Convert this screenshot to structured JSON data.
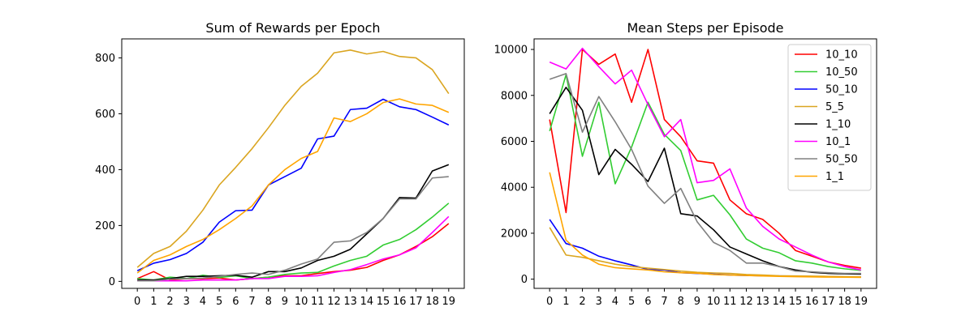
{
  "chart_data": [
    {
      "type": "line",
      "title": "Sum of Rewards per Epoch",
      "xlabel": "",
      "ylabel": "",
      "x": [
        0,
        1,
        2,
        3,
        4,
        5,
        6,
        7,
        8,
        9,
        10,
        11,
        12,
        13,
        14,
        15,
        16,
        17,
        18,
        19
      ],
      "xticks": [
        "0",
        "1",
        "2",
        "3",
        "4",
        "5",
        "6",
        "7",
        "8",
        "9",
        "10",
        "11",
        "12",
        "13",
        "14",
        "15",
        "16",
        "17",
        "18",
        "19"
      ],
      "xlim": [
        -0.95,
        19.95
      ],
      "ylim": [
        -25,
        868
      ],
      "yticks": [
        0,
        200,
        400,
        600,
        800
      ],
      "ytick_labels": [
        "0",
        "200",
        "400",
        "600",
        "800"
      ],
      "grid": false,
      "legend": null,
      "series": [
        {
          "name": "10_10",
          "color": "#ff0000",
          "values": [
            10,
            35,
            5,
            10,
            10,
            12,
            5,
            10,
            15,
            20,
            20,
            28,
            35,
            40,
            50,
            75,
            95,
            125,
            160,
            207
          ]
        },
        {
          "name": "10_50",
          "color": "#32cd32",
          "values": [
            10,
            5,
            15,
            10,
            22,
            14,
            20,
            10,
            15,
            25,
            30,
            32,
            55,
            75,
            90,
            130,
            150,
            185,
            230,
            280
          ]
        },
        {
          "name": "50_10",
          "color": "#0000ff",
          "values": [
            38,
            65,
            78,
            100,
            140,
            212,
            253,
            255,
            345,
            375,
            405,
            510,
            520,
            615,
            620,
            652,
            625,
            615,
            588,
            560
          ]
        },
        {
          "name": "5_5",
          "color": "#daa520",
          "values": [
            50,
            100,
            125,
            180,
            255,
            345,
            408,
            475,
            550,
            630,
            698,
            745,
            818,
            828,
            814,
            823,
            805,
            800,
            758,
            672
          ]
        },
        {
          "name": "1_10",
          "color": "#000000",
          "values": [
            5,
            5,
            10,
            18,
            18,
            20,
            22,
            15,
            35,
            35,
            48,
            75,
            90,
            115,
            170,
            225,
            300,
            298,
            395,
            418
          ]
        },
        {
          "name": "10_1",
          "color": "#ff00ff",
          "values": [
            2,
            2,
            2,
            2,
            5,
            5,
            5,
            10,
            10,
            18,
            18,
            20,
            32,
            42,
            60,
            80,
            95,
            120,
            175,
            232
          ]
        },
        {
          "name": "50_50",
          "color": "#808080",
          "values": [
            2,
            2,
            8,
            10,
            12,
            18,
            25,
            30,
            25,
            40,
            62,
            80,
            140,
            145,
            175,
            225,
            295,
            295,
            370,
            375
          ]
        },
        {
          "name": "1_1",
          "color": "#ffa500",
          "values": [
            30,
            75,
            95,
            125,
            150,
            185,
            225,
            270,
            345,
            400,
            440,
            465,
            585,
            572,
            600,
            640,
            653,
            635,
            630,
            605
          ]
        }
      ]
    },
    {
      "type": "line",
      "title": "Mean Steps per Episode",
      "xlabel": "",
      "ylabel": "",
      "x": [
        0,
        1,
        2,
        3,
        4,
        5,
        6,
        7,
        8,
        9,
        10,
        11,
        12,
        13,
        14,
        15,
        16,
        17,
        18,
        19
      ],
      "xticks": [
        "0",
        "1",
        "2",
        "3",
        "4",
        "5",
        "6",
        "7",
        "8",
        "9",
        "10",
        "11",
        "12",
        "13",
        "14",
        "15",
        "16",
        "17",
        "18",
        "19"
      ],
      "xlim": [
        -0.95,
        19.95
      ],
      "ylim": [
        -400,
        10460
      ],
      "yticks": [
        0,
        2000,
        4000,
        6000,
        8000,
        10000
      ],
      "ytick_labels": [
        "0",
        "2000",
        "4000",
        "6000",
        "8000",
        "10000"
      ],
      "grid": false,
      "legend": "top-right",
      "series": [
        {
          "name": "10_10",
          "color": "#ff0000",
          "values": [
            6950,
            2900,
            10000,
            9350,
            9800,
            7700,
            10000,
            6950,
            6200,
            5150,
            5050,
            3450,
            2850,
            2600,
            2000,
            1250,
            1000,
            750,
            600,
            480
          ]
        },
        {
          "name": "10_50",
          "color": "#32cd32",
          "values": [
            6450,
            8900,
            5350,
            7700,
            4150,
            5750,
            7700,
            6300,
            5600,
            3450,
            3650,
            2800,
            1750,
            1350,
            1150,
            800,
            700,
            550,
            450,
            380
          ]
        },
        {
          "name": "50_10",
          "color": "#0000ff",
          "values": [
            2600,
            1550,
            1350,
            1000,
            800,
            620,
            420,
            400,
            280,
            250,
            220,
            180,
            160,
            150,
            140,
            130,
            120,
            110,
            100,
            90
          ]
        },
        {
          "name": "5_5",
          "color": "#daa520",
          "values": [
            2250,
            1050,
            950,
            800,
            650,
            550,
            480,
            420,
            350,
            300,
            270,
            250,
            200,
            180,
            150,
            140,
            130,
            120,
            110,
            100
          ]
        },
        {
          "name": "1_10",
          "color": "#000000",
          "values": [
            7200,
            8350,
            7350,
            4550,
            5650,
            5000,
            4250,
            5700,
            2850,
            2750,
            2150,
            1400,
            1100,
            800,
            550,
            400,
            300,
            250,
            230,
            220
          ]
        },
        {
          "name": "10_1",
          "color": "#ff00ff",
          "values": [
            9450,
            9150,
            10050,
            9250,
            8500,
            9100,
            7600,
            6200,
            6950,
            4200,
            4300,
            4800,
            3100,
            2300,
            1750,
            1400,
            1050,
            750,
            550,
            400
          ]
        },
        {
          "name": "50_50",
          "color": "#808080",
          "values": [
            8700,
            8950,
            6400,
            7950,
            6850,
            5650,
            4050,
            3300,
            3950,
            2500,
            1600,
            1250,
            700,
            700,
            550,
            350,
            320,
            280,
            250,
            250
          ]
        },
        {
          "name": "1_1",
          "color": "#ffa500",
          "values": [
            4650,
            1700,
            1050,
            650,
            500,
            450,
            400,
            320,
            280,
            260,
            200,
            180,
            160,
            140,
            120,
            110,
            100,
            90,
            85,
            80
          ]
        }
      ]
    }
  ]
}
